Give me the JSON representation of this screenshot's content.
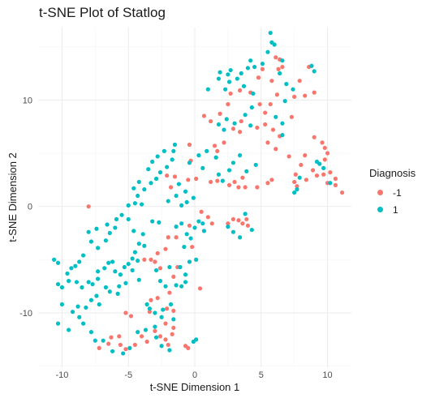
{
  "title": "t-SNE Plot of Statlog",
  "colors": {
    "neg": "#F8766D",
    "pos": "#00BFC4",
    "grid_major": "#ebebeb",
    "grid_minor": "#f5f5f5"
  },
  "legend": {
    "title": "Diagnosis",
    "items": [
      {
        "label": "-1",
        "color": "#F8766D"
      },
      {
        "label": "1",
        "color": "#00BFC4"
      }
    ],
    "position": "right"
  },
  "chart_data": {
    "type": "scatter",
    "title": "t-SNE Plot of Statlog",
    "xlabel": "t-SNE Dimension 1",
    "ylabel": "t-SNE Dimension 2",
    "xlim": [
      -11.8,
      11.8
    ],
    "ylim": [
      -15.1,
      16.8
    ],
    "xticks": [
      -10,
      -5,
      0,
      5,
      10
    ],
    "yticks": [
      -10,
      0,
      10
    ],
    "tick_labels_x": [
      "-10",
      "-5",
      "0",
      "5",
      "10"
    ],
    "tick_labels_y": [
      "-10",
      "0",
      "10"
    ],
    "grid": true,
    "legend_placement": "right",
    "series": [
      {
        "name": "-1",
        "color": "#F8766D",
        "points": [
          [
            -8,
            0
          ],
          [
            -7.2,
            -13.3
          ],
          [
            -6.5,
            -12.9
          ],
          [
            -6.3,
            -12.3
          ],
          [
            -5.7,
            -12.2
          ],
          [
            -5.6,
            -13.0
          ],
          [
            -5.2,
            -13.4
          ],
          [
            -4.5,
            -13.0
          ],
          [
            -4.0,
            -12.2
          ],
          [
            -3.6,
            -12.7
          ],
          [
            -3.0,
            -11.7
          ],
          [
            -2.6,
            -12.2
          ],
          [
            -2.2,
            -12.5
          ],
          [
            -2.0,
            -13.0
          ],
          [
            -1.7,
            -12.0
          ],
          [
            -1.6,
            -11.4
          ],
          [
            -2.2,
            -11.0
          ],
          [
            -0.7,
            -13.1
          ],
          [
            -0.5,
            -13.3
          ],
          [
            -3.3,
            -8.8
          ],
          [
            -2.8,
            -8.6
          ],
          [
            -1.9,
            -8.1
          ],
          [
            -2.1,
            -9.6
          ],
          [
            -3.4,
            -9.9
          ],
          [
            -5.2,
            -10.0
          ],
          [
            -4.8,
            -10.3
          ],
          [
            -1.6,
            -9.8
          ],
          [
            -1.6,
            -6.6
          ],
          [
            -1.3,
            -5.7
          ],
          [
            0.4,
            -7.7
          ],
          [
            -3.8,
            -5.0
          ],
          [
            -3.3,
            -5.0
          ],
          [
            -3.0,
            -5.2
          ],
          [
            -2.6,
            -5.8
          ],
          [
            -2.8,
            -4.4
          ],
          [
            -2.2,
            -4.0
          ],
          [
            -2.0,
            -2.9
          ],
          [
            -1.4,
            -2.9
          ],
          [
            -0.4,
            -1.8
          ],
          [
            -0.2,
            -3.8
          ],
          [
            0.5,
            -0.5
          ],
          [
            1.0,
            -1.0
          ],
          [
            1.3,
            -1.6
          ],
          [
            2.5,
            -1.6
          ],
          [
            2.9,
            -1.2
          ],
          [
            3.3,
            -1.3
          ],
          [
            3.6,
            -1.6
          ],
          [
            3.9,
            -1.2
          ],
          [
            4.0,
            -1.8
          ],
          [
            -1.8,
            1.8
          ],
          [
            -2.1,
            2.9
          ],
          [
            -1.5,
            2.8
          ],
          [
            -0.5,
            2.5
          ],
          [
            0.1,
            2.6
          ],
          [
            1.2,
            2.3
          ],
          [
            1.7,
            2.4
          ],
          [
            2.6,
            2.0
          ],
          [
            3.0,
            2.3
          ],
          [
            3.3,
            1.8
          ],
          [
            3.8,
            1.8
          ],
          [
            4.7,
            1.8
          ],
          [
            5.5,
            2.2
          ],
          [
            5.8,
            2.5
          ],
          [
            3.6,
            2.7
          ],
          [
            -0.3,
            4.3
          ],
          [
            -0.4,
            5.8
          ],
          [
            0.7,
            8.5
          ],
          [
            1.2,
            8.0
          ],
          [
            1.9,
            8.7
          ],
          [
            1.5,
            5.7
          ],
          [
            1.7,
            5.2
          ],
          [
            2.2,
            6.0
          ],
          [
            2.9,
            7.3
          ],
          [
            3.4,
            7.0
          ],
          [
            3.5,
            8.0
          ],
          [
            4.7,
            7.4
          ],
          [
            5.3,
            7.7
          ],
          [
            5.3,
            8.8
          ],
          [
            4.9,
            9.6
          ],
          [
            2.5,
            9.6
          ],
          [
            2.7,
            10.6
          ],
          [
            3.4,
            10.9
          ],
          [
            4.2,
            10.7
          ],
          [
            4.8,
            12.1
          ],
          [
            5.1,
            12.9
          ],
          [
            5.8,
            11.8
          ],
          [
            6.3,
            12.9
          ],
          [
            6.6,
            13.1
          ],
          [
            6.1,
            14.0
          ],
          [
            6.4,
            13.8
          ],
          [
            7.9,
            11.8
          ],
          [
            7.5,
            10.3
          ],
          [
            8.3,
            10.4
          ],
          [
            8.6,
            13.1
          ],
          [
            9.0,
            10.7
          ],
          [
            5.7,
            9.6
          ],
          [
            6.2,
            10.5
          ],
          [
            7.3,
            8.4
          ],
          [
            5.9,
            7.2
          ],
          [
            6.4,
            6.6
          ],
          [
            5.5,
            6.0
          ],
          [
            6.1,
            5.4
          ],
          [
            7.1,
            4.7
          ],
          [
            9.0,
            6.5
          ],
          [
            9.6,
            6.0
          ],
          [
            9.8,
            5.5
          ],
          [
            10.0,
            5.0
          ],
          [
            9.8,
            4.4
          ],
          [
            8.9,
            3.4
          ],
          [
            9.2,
            2.9
          ],
          [
            9.7,
            3.0
          ],
          [
            10.2,
            3.2
          ],
          [
            10.6,
            2.6
          ],
          [
            10.0,
            2.2
          ],
          [
            10.6,
            2.0
          ],
          [
            11.1,
            1.3
          ],
          [
            8.3,
            4.8
          ],
          [
            8.0,
            3.9
          ],
          [
            8.4,
            2.5
          ],
          [
            7.5,
            2.3
          ],
          [
            7.7,
            1.9
          ],
          [
            7.6,
            3.0
          ]
        ]
      },
      {
        "name": "1",
        "color": "#00BFC4",
        "points": [
          [
            -10.6,
            -5.0
          ],
          [
            -10.3,
            -5.3
          ],
          [
            -10.3,
            -7.3
          ],
          [
            -10.0,
            -7.6
          ],
          [
            -9.5,
            -7.0
          ],
          [
            -9.6,
            -6.3
          ],
          [
            -9.3,
            -5.8
          ],
          [
            -9.0,
            -5.6
          ],
          [
            -8.7,
            -5.2
          ],
          [
            -8.4,
            -4.6
          ],
          [
            -8.9,
            -7.1
          ],
          [
            -8.5,
            -7.6
          ],
          [
            -8.0,
            -7.1
          ],
          [
            -7.7,
            -7.3
          ],
          [
            -7.3,
            -6.8
          ],
          [
            -7.3,
            -6.1
          ],
          [
            -6.8,
            -5.8
          ],
          [
            -6.5,
            -5.3
          ],
          [
            -6.2,
            -5.2
          ],
          [
            -6.0,
            -6.1
          ],
          [
            -5.6,
            -6.4
          ],
          [
            -5.3,
            -5.7
          ],
          [
            -5.0,
            -5.4
          ],
          [
            -4.7,
            -4.9
          ],
          [
            -4.5,
            -4.3
          ],
          [
            -4.3,
            -5.1
          ],
          [
            -4.7,
            -6.0
          ],
          [
            -4.2,
            -6.9
          ],
          [
            -5.2,
            -7.2
          ],
          [
            -5.7,
            -7.5
          ],
          [
            -5.8,
            -8.2
          ],
          [
            -6.4,
            -8.0
          ],
          [
            -6.7,
            -7.6
          ],
          [
            -7.4,
            -8.4
          ],
          [
            -7.8,
            -8.8
          ],
          [
            -7.2,
            -9.2
          ],
          [
            -8.2,
            -9.5
          ],
          [
            -8.8,
            -9.4
          ],
          [
            -9.2,
            -9.9
          ],
          [
            -10.0,
            -9.2
          ],
          [
            -10.3,
            -11.0
          ],
          [
            -9.5,
            -11.6
          ],
          [
            -8.7,
            -10.4
          ],
          [
            -8.4,
            -11.0
          ],
          [
            -7.8,
            -11.8
          ],
          [
            -7.5,
            -12.6
          ],
          [
            -6.9,
            -12.6
          ],
          [
            -6.2,
            -13.6
          ],
          [
            -5.4,
            -13.8
          ],
          [
            -4.9,
            -13.3
          ],
          [
            -4.3,
            -11.8
          ],
          [
            -3.7,
            -11.6
          ],
          [
            -3.0,
            -11.3
          ],
          [
            -2.9,
            -12.3
          ],
          [
            -2.5,
            -13.1
          ],
          [
            -1.9,
            -13.5
          ],
          [
            -2.5,
            -10.4
          ],
          [
            -3.0,
            -10.0
          ],
          [
            -3.4,
            -9.6
          ],
          [
            -3.6,
            -9.2
          ],
          [
            -2.4,
            -9.7
          ],
          [
            -1.8,
            -9.2
          ],
          [
            -1.6,
            -10.6
          ],
          [
            -0.1,
            -12.7
          ],
          [
            0.1,
            -12.5
          ],
          [
            -0.7,
            -7.1
          ],
          [
            -1.0,
            -7.5
          ],
          [
            -1.4,
            -7.4
          ],
          [
            -2.2,
            -7.5
          ],
          [
            -2.6,
            -7.0
          ],
          [
            -2.9,
            -6.0
          ],
          [
            -1.9,
            -5.7
          ],
          [
            -1.1,
            -5.7
          ],
          [
            -0.7,
            -6.4
          ],
          [
            -0.4,
            -5.2
          ],
          [
            0.1,
            -5.0
          ],
          [
            -0.8,
            -3.8
          ],
          [
            -0.3,
            -3.0
          ],
          [
            -0.6,
            -2.6
          ],
          [
            0.0,
            -2.0
          ],
          [
            0.3,
            -1.4
          ],
          [
            0.6,
            -1.6
          ],
          [
            0.7,
            -2.3
          ],
          [
            -1.0,
            -1.6
          ],
          [
            -1.4,
            -1.9
          ],
          [
            -2.7,
            -1.5
          ],
          [
            -3.2,
            -1.4
          ],
          [
            -3.9,
            -2.6
          ],
          [
            -3.8,
            -3.7
          ],
          [
            -4.2,
            -3.5
          ],
          [
            -4.6,
            -2.3
          ],
          [
            -5.0,
            -1.2
          ],
          [
            -5.5,
            -0.8
          ],
          [
            -5.9,
            -1.2
          ],
          [
            -6.0,
            -2.0
          ],
          [
            -6.4,
            -2.5
          ],
          [
            -6.7,
            -3.2
          ],
          [
            -7.3,
            -3.9
          ],
          [
            -7.8,
            -3.3
          ],
          [
            -8.0,
            -2.4
          ],
          [
            -7.4,
            -2.1
          ],
          [
            -6.6,
            -1.7
          ],
          [
            -5.0,
            0.1
          ],
          [
            -4.5,
            0.3
          ],
          [
            -4.0,
            0.2
          ],
          [
            -4.3,
            1.0
          ],
          [
            -3.8,
            1.6
          ],
          [
            -3.3,
            2.2
          ],
          [
            -2.9,
            2.6
          ],
          [
            -2.6,
            3.2
          ],
          [
            -2.1,
            3.7
          ],
          [
            -1.7,
            4.4
          ],
          [
            -1.6,
            5.2
          ],
          [
            -1.5,
            5.8
          ],
          [
            -2.3,
            5.2
          ],
          [
            -2.8,
            4.7
          ],
          [
            -3.2,
            4.2
          ],
          [
            -3.5,
            3.5
          ],
          [
            -4.2,
            2.3
          ],
          [
            -4.6,
            1.7
          ],
          [
            -2.0,
            0.5
          ],
          [
            -1.4,
            1.0
          ],
          [
            -1.0,
            0.1
          ],
          [
            -0.6,
            0.4
          ],
          [
            -0.1,
            0.8
          ],
          [
            -1.2,
            2.1
          ],
          [
            -0.7,
            1.4
          ],
          [
            0.3,
            4.8
          ],
          [
            0.9,
            5.2
          ],
          [
            1.6,
            4.6
          ],
          [
            -0.4,
            4.1
          ],
          [
            0.6,
            3.6
          ],
          [
            1.8,
            3.0
          ],
          [
            2.1,
            2.4
          ],
          [
            2.6,
            3.4
          ],
          [
            2.9,
            4.1
          ],
          [
            3.4,
            4.8
          ],
          [
            3.9,
            3.3
          ],
          [
            4.6,
            3.9
          ],
          [
            2.5,
            -1.9
          ],
          [
            2.9,
            -2.4
          ],
          [
            3.4,
            -2.9
          ],
          [
            4.3,
            -2.2
          ],
          [
            3.8,
            -0.7
          ],
          [
            1.8,
            7.7
          ],
          [
            2.2,
            7.2
          ],
          [
            2.4,
            8.2
          ],
          [
            3.0,
            7.8
          ],
          [
            3.8,
            8.6
          ],
          [
            4.2,
            7.6
          ],
          [
            4.3,
            9.3
          ],
          [
            4.4,
            10.6
          ],
          [
            3.7,
            11.3
          ],
          [
            3.2,
            12.0
          ],
          [
            2.6,
            11.7
          ],
          [
            2.3,
            11.0
          ],
          [
            1.8,
            12.0
          ],
          [
            1.9,
            12.6
          ],
          [
            2.5,
            12.4
          ],
          [
            3.5,
            12.5
          ],
          [
            4.0,
            13.0
          ],
          [
            4.2,
            13.7
          ],
          [
            4.5,
            13.1
          ],
          [
            5.1,
            13.4
          ],
          [
            5.5,
            14.5
          ],
          [
            5.7,
            16.3
          ],
          [
            5.8,
            15.4
          ],
          [
            6.0,
            15.2
          ],
          [
            6.6,
            13.7
          ],
          [
            6.4,
            12.5
          ],
          [
            6.9,
            11.5
          ],
          [
            7.4,
            11.0
          ],
          [
            6.8,
            9.9
          ],
          [
            6.1,
            8.4
          ],
          [
            6.6,
            7.8
          ],
          [
            6.6,
            6.7
          ],
          [
            8.8,
            13.2
          ],
          [
            9.0,
            12.7
          ],
          [
            9.2,
            4.2
          ],
          [
            9.4,
            4.0
          ],
          [
            9.7,
            3.6
          ],
          [
            10.2,
            2.2
          ],
          [
            7.7,
            1.6
          ],
          [
            7.5,
            1.3
          ],
          [
            7.9,
            2.7
          ],
          [
            2.7,
            12.8
          ],
          [
            1.0,
            11.0
          ]
        ]
      }
    ]
  }
}
